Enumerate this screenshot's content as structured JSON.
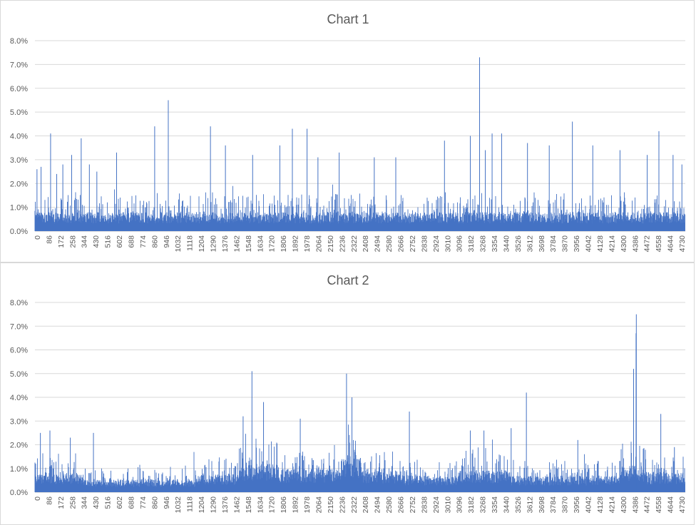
{
  "chart_data": [
    {
      "type": "bar",
      "title": "Chart 1",
      "xlabel": "",
      "ylabel": "",
      "ylim": [
        0,
        0.08
      ],
      "yticks": [
        "0.0%",
        "1.0%",
        "2.0%",
        "3.0%",
        "4.0%",
        "5.0%",
        "6.0%",
        "7.0%",
        "8.0%"
      ],
      "x_range": [
        0,
        4780
      ],
      "xticks": [
        "0",
        "86",
        "172",
        "258",
        "344",
        "430",
        "516",
        "602",
        "688",
        "774",
        "860",
        "946",
        "1032",
        "1118",
        "1204",
        "1290",
        "1376",
        "1462",
        "1548",
        "1634",
        "1720",
        "1806",
        "1892",
        "1978",
        "2064",
        "2150",
        "2236",
        "2322",
        "2408",
        "2494",
        "2580",
        "2666",
        "2752",
        "2838",
        "2924",
        "3010",
        "3096",
        "3182",
        "3268",
        "3354",
        "3440",
        "3526",
        "3612",
        "3698",
        "3784",
        "3870",
        "3956",
        "4042",
        "4128",
        "4214",
        "4300",
        "4386",
        "4472",
        "4558",
        "4644",
        "4730"
      ],
      "color": "#4472c4",
      "grid": true,
      "legend": "none",
      "baseline": 0.008,
      "noise": 0.006,
      "spikes": [
        [
          15,
          0.026
        ],
        [
          45,
          0.027
        ],
        [
          115,
          0.041
        ],
        [
          160,
          0.024
        ],
        [
          205,
          0.028
        ],
        [
          270,
          0.032
        ],
        [
          340,
          0.039
        ],
        [
          400,
          0.028
        ],
        [
          455,
          0.025
        ],
        [
          600,
          0.033
        ],
        [
          880,
          0.044
        ],
        [
          980,
          0.055
        ],
        [
          1290,
          0.044
        ],
        [
          1400,
          0.036
        ],
        [
          1600,
          0.032
        ],
        [
          1800,
          0.036
        ],
        [
          1892,
          0.043
        ],
        [
          2000,
          0.043
        ],
        [
          2080,
          0.031
        ],
        [
          2236,
          0.033
        ],
        [
          2494,
          0.031
        ],
        [
          2652,
          0.031
        ],
        [
          3010,
          0.038
        ],
        [
          3200,
          0.04
        ],
        [
          3268,
          0.073
        ],
        [
          3310,
          0.034
        ],
        [
          3360,
          0.041
        ],
        [
          3430,
          0.041
        ],
        [
          3620,
          0.037
        ],
        [
          3780,
          0.036
        ],
        [
          3950,
          0.046
        ],
        [
          4100,
          0.036
        ],
        [
          4300,
          0.034
        ],
        [
          4500,
          0.032
        ],
        [
          4586,
          0.042
        ],
        [
          4690,
          0.032
        ],
        [
          4755,
          0.028
        ]
      ]
    },
    {
      "type": "bar",
      "title": "Chart 2",
      "xlabel": "",
      "ylabel": "",
      "ylim": [
        0,
        0.08
      ],
      "yticks": [
        "0.0%",
        "1.0%",
        "2.0%",
        "3.0%",
        "4.0%",
        "5.0%",
        "6.0%",
        "7.0%",
        "8.0%"
      ],
      "x_range": [
        0,
        4780
      ],
      "xticks": [
        "0",
        "86",
        "172",
        "258",
        "344",
        "430",
        "516",
        "602",
        "688",
        "774",
        "860",
        "946",
        "1032",
        "1118",
        "1204",
        "1290",
        "1376",
        "1462",
        "1548",
        "1634",
        "1720",
        "1806",
        "1892",
        "1978",
        "2064",
        "2150",
        "2236",
        "2322",
        "2408",
        "2494",
        "2580",
        "2666",
        "2752",
        "2838",
        "2924",
        "3010",
        "3096",
        "3182",
        "3268",
        "3354",
        "3440",
        "3526",
        "3612",
        "3698",
        "3784",
        "3870",
        "3956",
        "4042",
        "4128",
        "4214",
        "4300",
        "4386",
        "4472",
        "4558",
        "4644",
        "4730"
      ],
      "color": "#4472c4",
      "grid": true,
      "legend": "none",
      "baseline": 0.007,
      "noise": 0.005,
      "spikes": [
        [
          40,
          0.025
        ],
        [
          110,
          0.026
        ],
        [
          260,
          0.023
        ],
        [
          430,
          0.025
        ],
        [
          1530,
          0.032
        ],
        [
          1595,
          0.051
        ],
        [
          1680,
          0.038
        ],
        [
          1950,
          0.031
        ],
        [
          2290,
          0.05
        ],
        [
          2330,
          0.04
        ],
        [
          2752,
          0.034
        ],
        [
          3200,
          0.026
        ],
        [
          3300,
          0.026
        ],
        [
          3500,
          0.027
        ],
        [
          3612,
          0.042
        ],
        [
          3990,
          0.022
        ],
        [
          4400,
          0.052
        ],
        [
          4420,
          0.075
        ],
        [
          4418,
          0.067
        ],
        [
          4600,
          0.033
        ],
        [
          4700,
          0.019
        ]
      ],
      "regimes": [
        [
          0,
          350,
          1.2
        ],
        [
          350,
          1200,
          0.8
        ],
        [
          1200,
          1500,
          1.1
        ],
        [
          1500,
          1800,
          1.7
        ],
        [
          1800,
          2250,
          1.4
        ],
        [
          2250,
          2400,
          2.1
        ],
        [
          2400,
          2700,
          1.3
        ],
        [
          2700,
          3100,
          1.0
        ],
        [
          3100,
          3500,
          1.3
        ],
        [
          3500,
          4300,
          1.0
        ],
        [
          4300,
          4500,
          1.6
        ],
        [
          4500,
          4780,
          1.2
        ]
      ]
    }
  ]
}
